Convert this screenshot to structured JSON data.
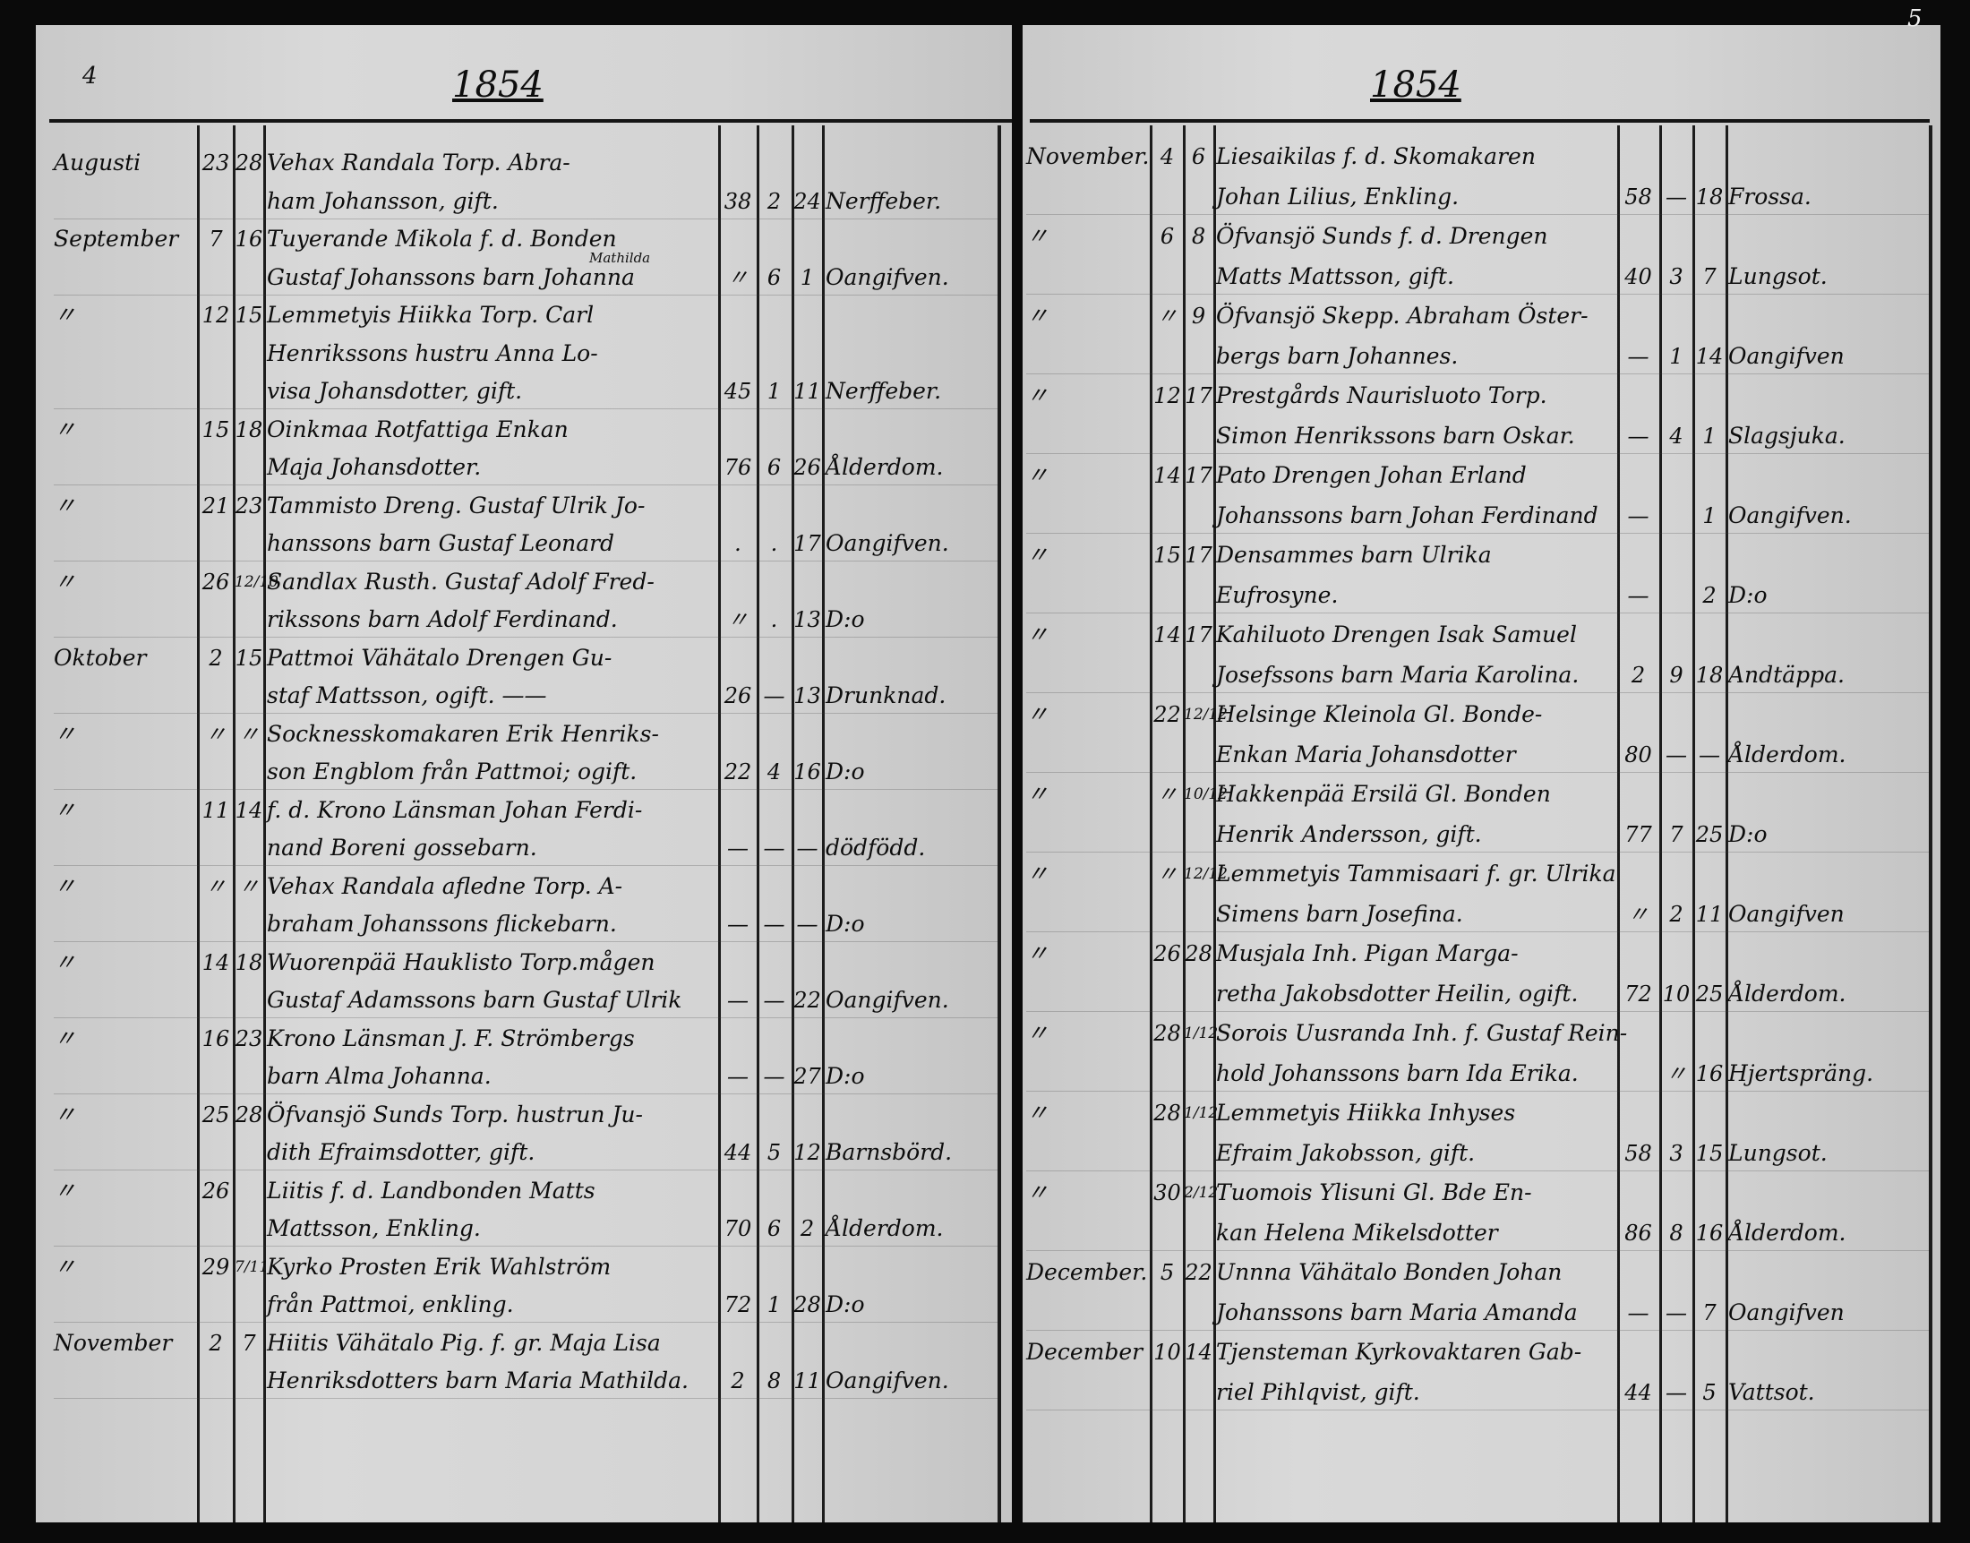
{
  "left_page": {
    "page_number": "4",
    "year": "1854",
    "entries": [
      {
        "month": "Augusti",
        "d1": "23",
        "d2": "28",
        "lines": [
          "Vehax Randala Torp. Abra-",
          "ham Johansson, gift."
        ],
        "age_y": "38",
        "age_m": "2",
        "age_d": "24",
        "cause": "Nerffeber."
      },
      {
        "month": "September",
        "d1": "7",
        "d2": "16",
        "lines": [
          "Tuyerande Mikola f. d. Bonden",
          "Gustaf Johanssons barn Johanna"
        ],
        "superscript": "Mathilda",
        "age_y": "〃",
        "age_m": "6",
        "age_d": "1",
        "cause": "Oangifven."
      },
      {
        "month": "〃",
        "d1": "12",
        "d2": "15",
        "lines": [
          "Lemmetyis Hiikka Torp. Carl",
          "Henrikssons hustru Anna Lo-",
          "visa Johansdotter, gift."
        ],
        "age_y": "45",
        "age_m": "1",
        "age_d": "11",
        "cause": "Nerffeber."
      },
      {
        "month": "〃",
        "d1": "15",
        "d2": "18",
        "lines": [
          "Oinkmaa Rotfattiga Enkan",
          "Maja Johansdotter."
        ],
        "age_y": "76",
        "age_m": "6",
        "age_d": "26",
        "cause": "Ålderdom."
      },
      {
        "month": "〃",
        "d1": "21",
        "d2": "23",
        "lines": [
          "Tammisto Dreng. Gustaf Ulrik Jo-",
          "hanssons barn Gustaf Leonard"
        ],
        "age_y": ".",
        "age_m": ".",
        "age_d": "17",
        "cause": "Oangifven."
      },
      {
        "month": "〃",
        "d1": "26",
        "d2": "12/10",
        "lines": [
          "Sandlax Rusth. Gustaf Adolf Fred-",
          "rikssons barn Adolf Ferdinand."
        ],
        "age_y": "〃",
        "age_m": ".",
        "age_d": "13",
        "cause": "D:o"
      },
      {
        "month": "Oktober",
        "d1": "2",
        "d2": "15",
        "lines": [
          "Pattmoi Vähätalo Drengen Gu-",
          "staf Mattsson, ogift. ——"
        ],
        "age_y": "26",
        "age_m": "—",
        "age_d": "13",
        "cause": "Drunknad."
      },
      {
        "month": "〃",
        "d1": "〃",
        "d2": "〃",
        "lines": [
          "Socknesskomakaren Erik Henriks-",
          "son Engblom från Pattmoi; ogift."
        ],
        "age_y": "22",
        "age_m": "4",
        "age_d": "16",
        "cause": "D:o"
      },
      {
        "month": "〃",
        "d1": "11",
        "d2": "14",
        "lines": [
          "f. d. Krono Länsman Johan Ferdi-",
          "nand Boreni gossebarn."
        ],
        "age_y": "—",
        "age_m": "—",
        "age_d": "—",
        "cause": "dödfödd."
      },
      {
        "month": "〃",
        "d1": "〃",
        "d2": "〃",
        "lines": [
          "Vehax Randala afledne Torp. A-",
          "braham Johanssons flickebarn."
        ],
        "age_y": "—",
        "age_m": "—",
        "age_d": "—",
        "cause": "D:o"
      },
      {
        "month": "〃",
        "d1": "14",
        "d2": "18",
        "lines": [
          "Wuorenpää Hauklisto Torp.mågen",
          "Gustaf Adamssons barn Gustaf Ulrik"
        ],
        "age_y": "—",
        "age_m": "—",
        "age_d": "22",
        "cause": "Oangifven."
      },
      {
        "month": "〃",
        "d1": "16",
        "d2": "23",
        "lines": [
          "Krono Länsman J. F. Strömbergs",
          "barn Alma Johanna."
        ],
        "age_y": "—",
        "age_m": "—",
        "age_d": "27",
        "cause": "D:o"
      },
      {
        "month": "〃",
        "d1": "25",
        "d2": "28",
        "lines": [
          "Öfvansjö Sunds Torp. hustrun Ju-",
          "dith Efraimsdotter, gift."
        ],
        "age_y": "44",
        "age_m": "5",
        "age_d": "12",
        "cause": "Barnsbörd."
      },
      {
        "month": "〃",
        "d1": "26",
        "d2": "",
        "lines": [
          "Liitis f. d. Landbonden Matts",
          "Mattsson, Enkling."
        ],
        "age_y": "70",
        "age_m": "6",
        "age_d": "2",
        "cause": "Ålderdom."
      },
      {
        "month": "〃",
        "d1": "29",
        "d2": "7/11",
        "lines": [
          "Kyrko Prosten Erik Wahlström",
          "från Pattmoi, enkling."
        ],
        "age_y": "72",
        "age_m": "1",
        "age_d": "28",
        "cause": "D:o"
      },
      {
        "month": "November",
        "d1": "2",
        "d2": "7",
        "lines": [
          "Hiitis Vähätalo Pig. f. gr. Maja Lisa",
          "Henriksdotters barn Maria Mathilda."
        ],
        "age_y": "2",
        "age_m": "8",
        "age_d": "11",
        "cause": "Oangifven."
      }
    ]
  },
  "right_page": {
    "page_number": "5",
    "year": "1854",
    "entries": [
      {
        "month": "November.",
        "d1": "4",
        "d2": "6",
        "lines": [
          "Liesaikilas f. d. Skomakaren",
          "Johan Lilius, Enkling."
        ],
        "age_y": "58",
        "age_m": "—",
        "age_d": "18",
        "cause": "Frossa."
      },
      {
        "month": "〃",
        "d1": "6",
        "d2": "8",
        "lines": [
          "Öfvansjö Sunds f. d. Drengen",
          "Matts Mattsson, gift."
        ],
        "age_y": "40",
        "age_m": "3",
        "age_d": "7",
        "cause": "Lungsot."
      },
      {
        "month": "〃",
        "d1": "〃",
        "d2": "9",
        "lines": [
          "Öfvansjö Skepp. Abraham Öster-",
          "bergs barn Johannes."
        ],
        "age_y": "—",
        "age_m": "1",
        "age_d": "14",
        "cause": "Oangifven"
      },
      {
        "month": "〃",
        "d1": "12",
        "d2": "17",
        "lines": [
          "Prestgårds Naurisluoto Torp.",
          "Simon Henrikssons barn Oskar."
        ],
        "age_y": "—",
        "age_m": "4",
        "age_d": "1",
        "cause": "Slagsjuka."
      },
      {
        "month": "〃",
        "d1": "14",
        "d2": "17",
        "lines": [
          "Pato Drengen Johan Erland",
          "Johanssons barn Johan Ferdinand"
        ],
        "age_y": "—",
        "age_m": "",
        "age_d": "1",
        "cause": "Oangifven."
      },
      {
        "month": "〃",
        "d1": "15",
        "d2": "17",
        "lines": [
          "Densammes barn Ulrika",
          "Eufrosyne."
        ],
        "age_y": "—",
        "age_m": "",
        "age_d": "2",
        "cause": "D:o"
      },
      {
        "month": "〃",
        "d1": "14",
        "d2": "17",
        "lines": [
          "Kahiluoto Drengen Isak Samuel",
          "Josefssons barn Maria Karolina."
        ],
        "age_y": "2",
        "age_m": "9",
        "age_d": "18",
        "cause": "Andtäppa."
      },
      {
        "month": "〃",
        "d1": "22",
        "d2": "12/12",
        "lines": [
          "Helsinge Kleinola Gl. Bonde-",
          "Enkan Maria Johansdotter"
        ],
        "age_y": "80",
        "age_m": "—",
        "age_d": "—",
        "cause": "Ålderdom."
      },
      {
        "month": "〃",
        "d1": "〃",
        "d2": "10/12",
        "lines": [
          "Hakkenpää Ersilä Gl. Bonden",
          "Henrik Andersson, gift."
        ],
        "age_y": "77",
        "age_m": "7",
        "age_d": "25",
        "cause": "D:o"
      },
      {
        "month": "〃",
        "d1": "〃",
        "d2": "12/12",
        "lines": [
          "Lemmetyis Tammisaari f. gr. Ulrika",
          "Simens barn Josefina."
        ],
        "age_y": "〃",
        "age_m": "2",
        "age_d": "11",
        "cause": "Oangifven"
      },
      {
        "month": "〃",
        "d1": "26",
        "d2": "28",
        "lines": [
          "Musjala Inh. Pigan Marga-",
          "retha Jakobsdotter Heilin, ogift."
        ],
        "age_y": "72",
        "age_m": "10",
        "age_d": "25",
        "cause": "Ålderdom."
      },
      {
        "month": "〃",
        "d1": "28",
        "d2": "1/12",
        "lines": [
          "Sorois Uusranda Inh. f. Gustaf Rein-",
          "hold Johanssons barn Ida Erika."
        ],
        "age_y": "",
        "age_m": "〃",
        "age_d": "16",
        "cause": "Hjertspräng."
      },
      {
        "month": "〃",
        "d1": "28",
        "d2": "1/12",
        "lines": [
          "Lemmetyis Hiikka Inhyses",
          "Efraim Jakobsson, gift."
        ],
        "age_y": "58",
        "age_m": "3",
        "age_d": "15",
        "cause": "Lungsot."
      },
      {
        "month": "〃",
        "d1": "30",
        "d2": "2/12",
        "lines": [
          "Tuomois Ylisuni Gl. Bde En-",
          "kan Helena Mikelsdotter"
        ],
        "age_y": "86",
        "age_m": "8",
        "age_d": "16",
        "cause": "Ålderdom."
      },
      {
        "month": "December.",
        "d1": "5",
        "d2": "22",
        "lines": [
          "Unnna Vähätalo Bonden Johan",
          "Johanssons barn Maria Amanda"
        ],
        "age_y": "—",
        "age_m": "—",
        "age_d": "7",
        "cause": "Oangifven"
      },
      {
        "month": "December",
        "d1": "10",
        "d2": "14",
        "lines": [
          "Tjensteman Kyrkovaktaren Gab-",
          "riel Pihlqvist, gift."
        ],
        "age_y": "44",
        "age_m": "—",
        "age_d": "5",
        "cause": "Vattsot."
      }
    ]
  },
  "colors": {
    "paper": "#d4d4d4",
    "ink": "#0d0d0d",
    "background": "#0a0a0a"
  }
}
